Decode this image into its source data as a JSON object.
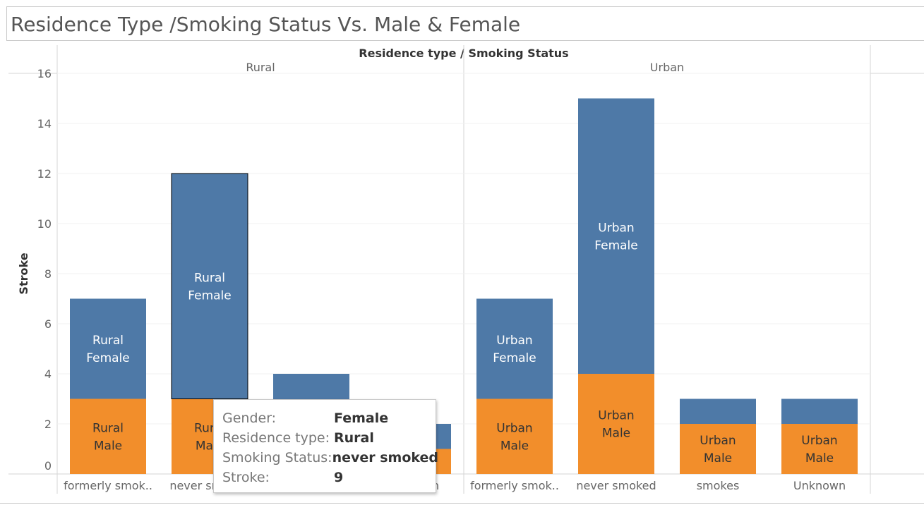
{
  "title": "Residence Type /Smoking Status Vs. Male & Female",
  "chart_data": {
    "type": "bar",
    "stacked": true,
    "header": "Residence type  /  Smoking Status",
    "ylabel": "Stroke",
    "ylim": [
      0,
      16
    ],
    "yticks": [
      0,
      2,
      4,
      6,
      8,
      10,
      12,
      14,
      16
    ],
    "panels": [
      {
        "name": "Rural",
        "categories": [
          "formerly smok..",
          "never smoked",
          "smokes",
          "Unknown"
        ],
        "male": [
          3,
          3,
          1,
          1
        ],
        "female": [
          4,
          9,
          3,
          1
        ],
        "male_labels": [
          "Rural\nMale",
          "Rural\nMale",
          "",
          ""
        ],
        "female_labels": [
          "Rural\nFemale",
          "Rural\nFemale",
          "Rural",
          ""
        ]
      },
      {
        "name": "Urban",
        "categories": [
          "formerly smok..",
          "never smoked",
          "smokes",
          "Unknown"
        ],
        "male": [
          3,
          4,
          2,
          2
        ],
        "female": [
          4,
          11,
          1,
          1
        ],
        "male_labels": [
          "Urban\nMale",
          "Urban\nMale",
          "Urban\nMale",
          "Urban\nMale"
        ],
        "female_labels": [
          "Urban\nFemale",
          "Urban\nFemale",
          "",
          ""
        ]
      }
    ],
    "colors": {
      "male": "#f28e2b",
      "female": "#4e79a7"
    },
    "highlight": {
      "panel": 0,
      "index": 1,
      "segment": "female"
    }
  },
  "tooltip": {
    "rows": [
      {
        "key": "Gender:",
        "value": "Female"
      },
      {
        "key": "Residence type:",
        "value": "Rural"
      },
      {
        "key": "Smoking Status:",
        "value": "never smoked"
      },
      {
        "key": "Stroke:",
        "value": "9"
      }
    ]
  }
}
